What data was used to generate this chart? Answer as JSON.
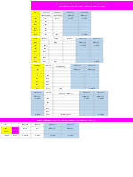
{
  "yellow": "#FFFF00",
  "blue": "#BDD7EE",
  "magenta": "#FF00FF",
  "white": "#FFFFFF",
  "lgrey": "#F2F2F2",
  "dgrey": "#808080",
  "black": "#000000"
}
